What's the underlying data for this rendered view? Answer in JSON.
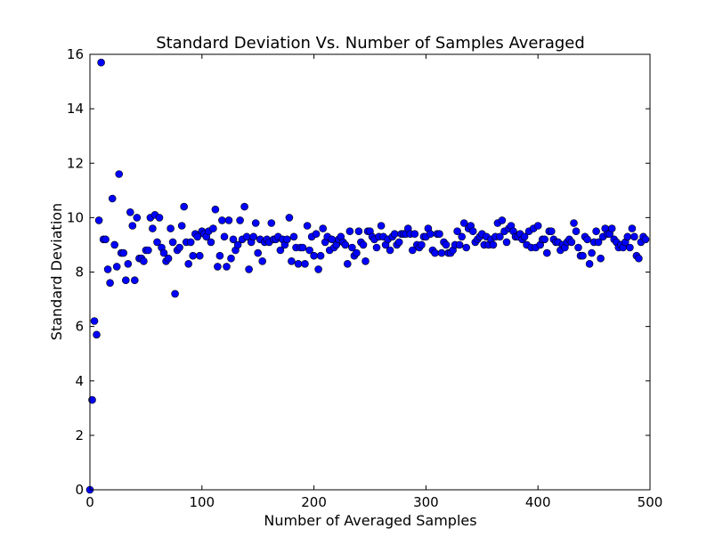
{
  "chart_data": {
    "type": "scatter",
    "title": "Standard Deviation Vs. Number of Samples Averaged",
    "xlabel": "Number of Averaged Samples",
    "ylabel": "Standard Deviation",
    "xlim": [
      0,
      500
    ],
    "ylim": [
      0,
      16
    ],
    "xticks": [
      0,
      100,
      200,
      300,
      400,
      500
    ],
    "yticks": [
      0,
      2,
      4,
      6,
      8,
      10,
      12,
      14,
      16
    ],
    "grid": false,
    "marker_color": "#0000ff",
    "marker_edge": "#000000",
    "points": [
      [
        0,
        0
      ],
      [
        2,
        3.3
      ],
      [
        4,
        6.2
      ],
      [
        6,
        5.7
      ],
      [
        8,
        9.9
      ],
      [
        10,
        15.7
      ],
      [
        12,
        9.2
      ],
      [
        14,
        9.2
      ],
      [
        16,
        8.1
      ],
      [
        18,
        7.6
      ],
      [
        20,
        10.7
      ],
      [
        22,
        9.0
      ],
      [
        24,
        8.2
      ],
      [
        26,
        11.6
      ],
      [
        28,
        8.7
      ],
      [
        30,
        8.7
      ],
      [
        32,
        7.7
      ],
      [
        34,
        8.3
      ],
      [
        36,
        10.2
      ],
      [
        38,
        9.7
      ],
      [
        40,
        7.7
      ],
      [
        42,
        10.0
      ],
      [
        44,
        8.5
      ],
      [
        46,
        8.5
      ],
      [
        48,
        8.4
      ],
      [
        50,
        8.8
      ],
      [
        52,
        8.8
      ],
      [
        54,
        10.0
      ],
      [
        56,
        9.6
      ],
      [
        58,
        10.1
      ],
      [
        60,
        9.1
      ],
      [
        62,
        10.0
      ],
      [
        64,
        8.9
      ],
      [
        66,
        8.7
      ],
      [
        68,
        8.4
      ],
      [
        70,
        8.5
      ],
      [
        72,
        9.6
      ],
      [
        74,
        9.1
      ],
      [
        76,
        7.2
      ],
      [
        78,
        8.8
      ],
      [
        80,
        8.9
      ],
      [
        82,
        9.7
      ],
      [
        84,
        10.4
      ],
      [
        86,
        9.1
      ],
      [
        88,
        8.3
      ],
      [
        90,
        9.1
      ],
      [
        92,
        8.6
      ],
      [
        94,
        9.4
      ],
      [
        96,
        9.3
      ],
      [
        98,
        8.6
      ],
      [
        100,
        9.5
      ],
      [
        102,
        9.4
      ],
      [
        104,
        9.3
      ],
      [
        106,
        9.5
      ],
      [
        108,
        9.1
      ],
      [
        110,
        9.6
      ],
      [
        112,
        10.3
      ],
      [
        114,
        8.2
      ],
      [
        116,
        8.6
      ],
      [
        118,
        9.9
      ],
      [
        120,
        9.3
      ],
      [
        122,
        8.2
      ],
      [
        124,
        9.9
      ],
      [
        126,
        8.5
      ],
      [
        128,
        9.2
      ],
      [
        130,
        8.8
      ],
      [
        132,
        9.0
      ],
      [
        134,
        9.9
      ],
      [
        136,
        9.2
      ],
      [
        138,
        10.4
      ],
      [
        140,
        9.3
      ],
      [
        142,
        8.1
      ],
      [
        144,
        9.1
      ],
      [
        146,
        9.3
      ],
      [
        148,
        9.8
      ],
      [
        150,
        8.7
      ],
      [
        152,
        9.2
      ],
      [
        154,
        8.4
      ],
      [
        156,
        9.1
      ],
      [
        158,
        9.2
      ],
      [
        160,
        9.1
      ],
      [
        162,
        9.8
      ],
      [
        164,
        9.2
      ],
      [
        166,
        9.2
      ],
      [
        168,
        9.3
      ],
      [
        170,
        8.8
      ],
      [
        172,
        9.2
      ],
      [
        174,
        9.0
      ],
      [
        176,
        9.2
      ],
      [
        178,
        10.0
      ],
      [
        180,
        8.4
      ],
      [
        182,
        9.3
      ],
      [
        184,
        8.9
      ],
      [
        186,
        8.3
      ],
      [
        188,
        8.9
      ],
      [
        190,
        8.9
      ],
      [
        192,
        8.3
      ],
      [
        194,
        9.7
      ],
      [
        196,
        8.8
      ],
      [
        198,
        9.3
      ],
      [
        200,
        8.6
      ],
      [
        202,
        9.4
      ],
      [
        204,
        8.1
      ],
      [
        206,
        8.6
      ],
      [
        208,
        9.6
      ],
      [
        210,
        9.1
      ],
      [
        212,
        9.3
      ],
      [
        214,
        8.8
      ],
      [
        216,
        9.2
      ],
      [
        218,
        8.9
      ],
      [
        220,
        9.0
      ],
      [
        222,
        9.2
      ],
      [
        224,
        9.3
      ],
      [
        226,
        9.1
      ],
      [
        228,
        9.0
      ],
      [
        230,
        8.3
      ],
      [
        232,
        9.5
      ],
      [
        234,
        8.9
      ],
      [
        236,
        8.6
      ],
      [
        238,
        8.7
      ],
      [
        240,
        9.5
      ],
      [
        242,
        9.1
      ],
      [
        244,
        9.0
      ],
      [
        246,
        8.4
      ],
      [
        248,
        9.5
      ],
      [
        250,
        9.5
      ],
      [
        252,
        9.3
      ],
      [
        254,
        9.2
      ],
      [
        256,
        8.9
      ],
      [
        258,
        9.3
      ],
      [
        260,
        9.7
      ],
      [
        262,
        9.3
      ],
      [
        264,
        9.0
      ],
      [
        266,
        9.2
      ],
      [
        268,
        8.8
      ],
      [
        270,
        9.3
      ],
      [
        272,
        9.4
      ],
      [
        274,
        9.0
      ],
      [
        276,
        9.1
      ],
      [
        278,
        9.4
      ],
      [
        280,
        9.4
      ],
      [
        282,
        9.4
      ],
      [
        284,
        9.6
      ],
      [
        286,
        9.4
      ],
      [
        288,
        8.8
      ],
      [
        290,
        9.4
      ],
      [
        292,
        9.0
      ],
      [
        294,
        8.9
      ],
      [
        296,
        9.0
      ],
      [
        298,
        9.3
      ],
      [
        300,
        9.3
      ],
      [
        302,
        9.6
      ],
      [
        304,
        9.4
      ],
      [
        306,
        8.8
      ],
      [
        308,
        8.7
      ],
      [
        310,
        9.4
      ],
      [
        312,
        9.4
      ],
      [
        314,
        8.7
      ],
      [
        316,
        9.1
      ],
      [
        318,
        9.0
      ],
      [
        320,
        8.7
      ],
      [
        322,
        8.7
      ],
      [
        324,
        8.8
      ],
      [
        326,
        9.0
      ],
      [
        328,
        9.5
      ],
      [
        330,
        9.0
      ],
      [
        332,
        9.3
      ],
      [
        334,
        9.8
      ],
      [
        336,
        8.9
      ],
      [
        338,
        9.6
      ],
      [
        340,
        9.7
      ],
      [
        342,
        9.5
      ],
      [
        344,
        9.1
      ],
      [
        346,
        9.2
      ],
      [
        348,
        9.3
      ],
      [
        350,
        9.4
      ],
      [
        352,
        9.0
      ],
      [
        354,
        9.3
      ],
      [
        356,
        9.0
      ],
      [
        358,
        9.2
      ],
      [
        360,
        9.0
      ],
      [
        362,
        9.3
      ],
      [
        364,
        9.8
      ],
      [
        366,
        9.3
      ],
      [
        368,
        9.9
      ],
      [
        370,
        9.5
      ],
      [
        372,
        9.1
      ],
      [
        374,
        9.6
      ],
      [
        376,
        9.7
      ],
      [
        378,
        9.5
      ],
      [
        380,
        9.3
      ],
      [
        382,
        9.3
      ],
      [
        384,
        9.4
      ],
      [
        386,
        9.2
      ],
      [
        388,
        9.3
      ],
      [
        390,
        9.0
      ],
      [
        392,
        9.5
      ],
      [
        394,
        8.9
      ],
      [
        396,
        9.6
      ],
      [
        398,
        8.9
      ],
      [
        400,
        9.7
      ],
      [
        402,
        9.0
      ],
      [
        404,
        9.2
      ],
      [
        406,
        9.2
      ],
      [
        408,
        8.7
      ],
      [
        410,
        9.5
      ],
      [
        412,
        9.5
      ],
      [
        414,
        9.2
      ],
      [
        416,
        9.1
      ],
      [
        418,
        9.1
      ],
      [
        420,
        8.8
      ],
      [
        422,
        9.0
      ],
      [
        424,
        8.9
      ],
      [
        426,
        9.1
      ],
      [
        428,
        9.2
      ],
      [
        430,
        9.1
      ],
      [
        432,
        9.8
      ],
      [
        434,
        9.5
      ],
      [
        436,
        8.9
      ],
      [
        438,
        8.6
      ],
      [
        440,
        8.6
      ],
      [
        442,
        9.3
      ],
      [
        444,
        9.2
      ],
      [
        446,
        8.3
      ],
      [
        448,
        8.7
      ],
      [
        450,
        9.1
      ],
      [
        452,
        9.5
      ],
      [
        454,
        9.1
      ],
      [
        456,
        8.5
      ],
      [
        458,
        9.3
      ],
      [
        460,
        9.6
      ],
      [
        462,
        9.4
      ],
      [
        464,
        9.4
      ],
      [
        466,
        9.6
      ],
      [
        468,
        9.2
      ],
      [
        470,
        9.1
      ],
      [
        472,
        8.9
      ],
      [
        474,
        9.0
      ],
      [
        476,
        8.9
      ],
      [
        478,
        9.1
      ],
      [
        480,
        9.3
      ],
      [
        482,
        8.9
      ],
      [
        484,
        9.6
      ],
      [
        486,
        9.3
      ],
      [
        488,
        8.6
      ],
      [
        490,
        8.5
      ],
      [
        492,
        9.1
      ],
      [
        494,
        9.3
      ],
      [
        496,
        9.2
      ]
    ]
  }
}
